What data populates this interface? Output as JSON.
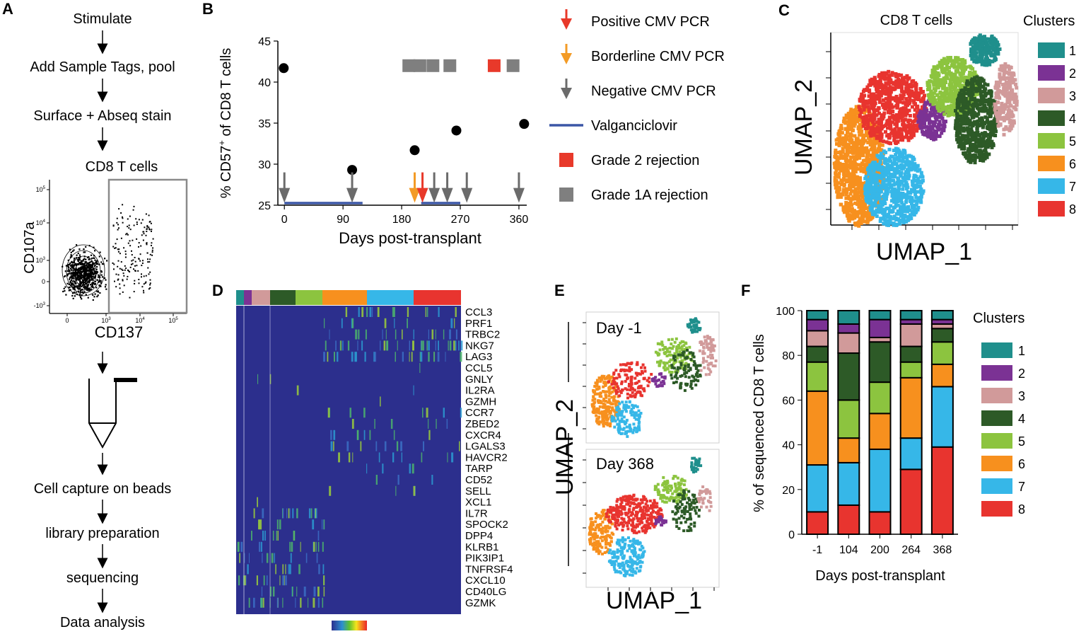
{
  "panel_labels": {
    "a": "A",
    "b": "B",
    "c": "C",
    "d": "D",
    "e": "E",
    "f": "F"
  },
  "workflow": {
    "steps_top": [
      "Stimulate",
      "Add Sample Tags, pool",
      "Surface + Abseq stain"
    ],
    "gate_title": "CD8 T cells",
    "gate_ylabel": "CD107a",
    "gate_xlabel": "CD137",
    "gate_yticks": [
      "10",
      "10",
      "10",
      "0",
      "-10"
    ],
    "gate_yexp": [
      "5",
      "4",
      "3",
      "",
      "3"
    ],
    "gate_xticks": [
      "0",
      "10",
      "10",
      "10"
    ],
    "gate_xexp": [
      "",
      "3",
      "4",
      "5"
    ],
    "steps_bottom": [
      "Cell capture on beads",
      "library preparation",
      "sequencing",
      "Data analysis"
    ]
  },
  "legend_b": [
    {
      "label": "Positive CMV PCR",
      "color": "#e8392a",
      "shape": "down-arrow"
    },
    {
      "label": "Borderline CMV PCR",
      "color": "#f39b26",
      "shape": "down-arrow"
    },
    {
      "label": "Negative CMV PCR",
      "color": "#6b6b6b",
      "shape": "down-arrow"
    },
    {
      "label": "Valganciclovir",
      "color": "#3b57a6",
      "shape": "line"
    },
    {
      "label": "Grade 2 rejection",
      "color": "#e8392a",
      "shape": "square"
    },
    {
      "label": "Grade 1A rejection",
      "color": "#7f7f7f",
      "shape": "square"
    }
  ],
  "umap_c": {
    "title": "CD8 T cells",
    "xlabel": "UMAP_1",
    "ylabel": "UMAP_2",
    "legend_title": "Clusters"
  },
  "umap_e": {
    "xlabel": "UMAP_1",
    "ylabel": "UMAP_2",
    "panel1": "Day -1",
    "panel2": "Day 368"
  },
  "clusters": [
    {
      "id": "1",
      "color": "#1f8f8c"
    },
    {
      "id": "2",
      "color": "#7b3294"
    },
    {
      "id": "3",
      "color": "#d19a9a"
    },
    {
      "id": "4",
      "color": "#2d5a27"
    },
    {
      "id": "5",
      "color": "#8cc43f"
    },
    {
      "id": "6",
      "color": "#f7901e"
    },
    {
      "id": "7",
      "color": "#36b7e8"
    },
    {
      "id": "8",
      "color": "#e8342f"
    }
  ],
  "heatmap": {
    "genes": [
      "CCL3",
      "PRF1",
      "TRBC2",
      "NKG7",
      "LAG3",
      "CCL5",
      "GNLY",
      "IL2RA",
      "GZMH",
      "CCR7",
      "ZBED2",
      "CXCR4",
      "LGALS3",
      "HAVCR2",
      "TARP",
      "CD52",
      "SELL",
      "XCL1",
      "IL7R",
      "SPOCK2",
      "DPP4",
      "KLRB1",
      "PIK3IP1",
      "TNFRSF4",
      "CXCL10",
      "CD40LG",
      "GZMK"
    ]
  },
  "chart_data": [
    {
      "type": "scatter",
      "panel": "B",
      "title": "",
      "xlabel": "Days post-transplant",
      "ylabel": "% CD57+ of CD8 T cells",
      "xlim": [
        -10,
        372
      ],
      "ylim": [
        25,
        45
      ],
      "xticks": [
        0,
        90,
        180,
        270,
        360
      ],
      "yticks": [
        25,
        30,
        35,
        40,
        45
      ],
      "points": [
        {
          "x": -1,
          "y": 41.7
        },
        {
          "x": 104,
          "y": 29.3
        },
        {
          "x": 200,
          "y": 31.7
        },
        {
          "x": 264,
          "y": 34.1
        },
        {
          "x": 368,
          "y": 34.9
        }
      ],
      "negative_pcr_days": [
        0,
        104,
        230,
        250,
        280,
        360
      ],
      "borderline_pcr_days": [
        200
      ],
      "positive_pcr_days": [
        212
      ],
      "valganciclovir_periods": [
        [
          0,
          120
        ],
        [
          210,
          270
        ]
      ],
      "grade1a_rejection_days": [
        191,
        208,
        228,
        254,
        351
      ],
      "grade2_rejection_days": [
        322
      ]
    },
    {
      "type": "bar",
      "panel": "F",
      "stacked": true,
      "title": "",
      "xlabel": "Days post-transplant",
      "ylabel": "% of sequenced CD8 T cells",
      "ylim": [
        0,
        100
      ],
      "yticks": [
        0,
        20,
        40,
        60,
        80,
        100
      ],
      "legend_title": "Clusters",
      "categories": [
        "-1",
        "104",
        "200",
        "264",
        "368"
      ],
      "series": [
        {
          "name": "8",
          "values": [
            10,
            13,
            10,
            29,
            39
          ]
        },
        {
          "name": "7",
          "values": [
            21,
            19,
            28,
            14,
            27
          ]
        },
        {
          "name": "6",
          "values": [
            33,
            11,
            16,
            27,
            10
          ]
        },
        {
          "name": "5",
          "values": [
            13,
            17,
            14,
            7,
            10
          ]
        },
        {
          "name": "4",
          "values": [
            7,
            21,
            18,
            7,
            6
          ]
        },
        {
          "name": "3",
          "values": [
            7,
            9,
            2,
            10,
            2
          ]
        },
        {
          "name": "2",
          "values": [
            5,
            4,
            8,
            2,
            2
          ]
        },
        {
          "name": "1",
          "values": [
            4,
            6,
            4,
            4,
            4
          ]
        }
      ]
    }
  ]
}
